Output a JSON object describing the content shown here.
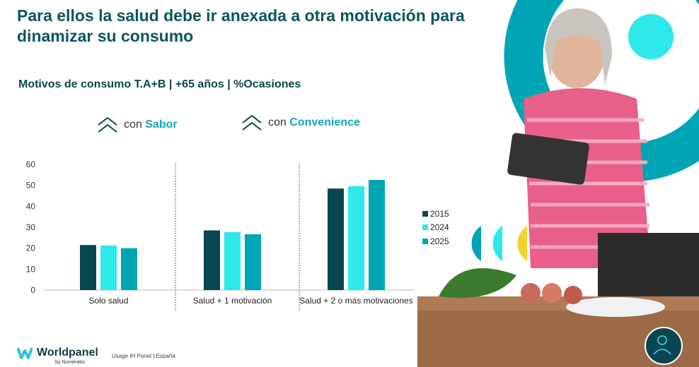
{
  "title": "Para ellos la salud debe ir anexada a otra motivación para dinamizar su consumo",
  "subtitle": "Motivos de consumo T.A+B | +65 años | %Ocasiones",
  "tags": [
    {
      "prefix": "con",
      "label": "Sabor",
      "icon": "double-chevron-up-icon"
    },
    {
      "prefix": "con",
      "label": "Convenience",
      "icon": "double-chevron-up-icon"
    }
  ],
  "footer": {
    "brand": "Worldpanel",
    "brand_sub": "by Numerator",
    "source": "Usage IH Panel | España"
  },
  "colors": {
    "accent": "#12a8b8",
    "dark": "#0b4650"
  },
  "chart_data": {
    "type": "bar",
    "categories": [
      "Solo salud",
      "Salud + 1 motivación",
      "Salud + 2 o más motivaciones"
    ],
    "series": [
      {
        "name": "2015",
        "color": "#08474f",
        "values": [
          21.5,
          28.5,
          48.5
        ]
      },
      {
        "name": "2024",
        "color": "#2ee8ea",
        "values": [
          21.3,
          27.7,
          49.6
        ]
      },
      {
        "name": "2025",
        "color": "#00a5b5",
        "values": [
          20,
          26.7,
          52.6
        ]
      }
    ],
    "ylim": [
      0,
      60
    ],
    "yticks": [
      0,
      10,
      20,
      30,
      40,
      50,
      60
    ],
    "legend": "right",
    "grid": false
  }
}
